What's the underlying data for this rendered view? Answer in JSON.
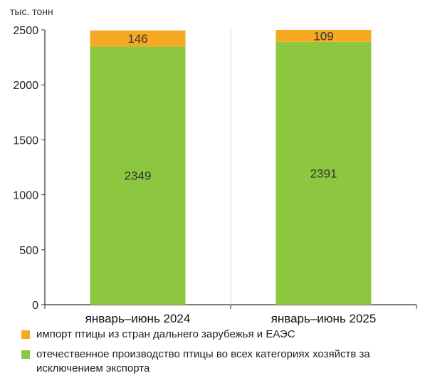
{
  "chart_data": {
    "type": "bar",
    "stacked": true,
    "unit": "тыс. тонн",
    "categories": [
      "январь–июнь 2024",
      "январь–июнь 2025"
    ],
    "series": [
      {
        "name": "отечественное производство птицы во всех категориях хозяйств за исключением экспорта",
        "values": [
          2349,
          2391
        ],
        "color": "#8dc63f"
      },
      {
        "name": "импорт птицы из стран дальнего зарубежья и ЕАЭС",
        "values": [
          146,
          109
        ],
        "color": "#f7a823"
      }
    ],
    "ylim": [
      0,
      2500
    ],
    "yticks": [
      0,
      500,
      1000,
      1500,
      2000,
      2500
    ],
    "grid": "vertical separators",
    "legend_position": "bottom"
  },
  "legend": [
    {
      "label": "импорт птицы из стран дальнего зарубежья и ЕАЭС",
      "color": "#f7a823"
    },
    {
      "label": "отечественное производство птицы во всех категориях хозяйств за исключением экспорта",
      "color": "#8dc63f"
    }
  ]
}
